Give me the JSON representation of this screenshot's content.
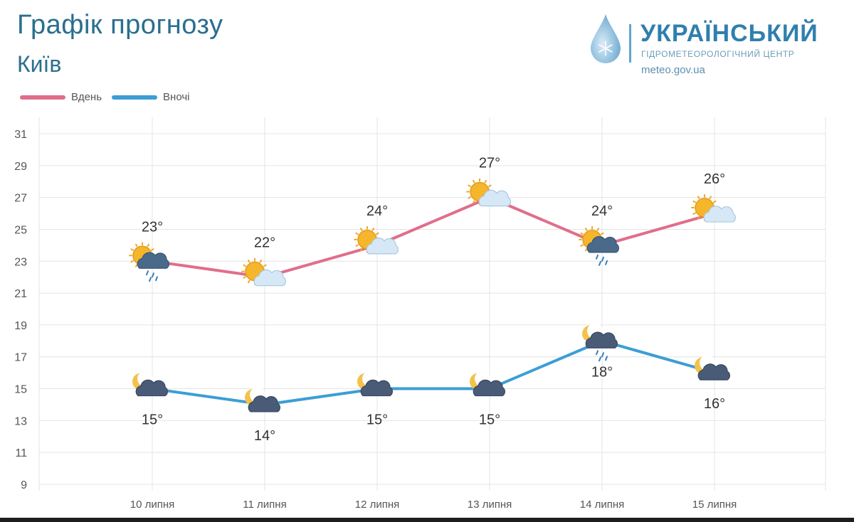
{
  "header": {
    "title": "Графік прогнозу",
    "city": "Київ"
  },
  "logo": {
    "name": "УКРАЇНСЬКИЙ",
    "subtitle": "ГІДРОМЕТЕОРОЛОГІЧНИЙ ЦЕНТР",
    "url": "meteo.gov.ua",
    "icon": "water-drop-snowflake-icon"
  },
  "legend": {
    "day_label": "Вдень",
    "night_label": "Вночі"
  },
  "colors": {
    "day": "#e06e8a",
    "night": "#3d9ed4",
    "grid": "#e6e6e6",
    "title": "#2a6f8e"
  },
  "chart_data": {
    "type": "line",
    "categories": [
      "10 липня",
      "11 липня",
      "12 липня",
      "13 липня",
      "14 липня",
      "15 липня"
    ],
    "series": [
      {
        "name": "Вдень",
        "values": [
          23,
          22,
          24,
          27,
          24,
          26
        ],
        "labels": [
          "23°",
          "22°",
          "24°",
          "27°",
          "24°",
          "26°"
        ],
        "icons": [
          "sun-cloud-rain-icon",
          "sun-cloud-icon",
          "sun-cloud-icon",
          "sun-cloud-icon",
          "sun-cloud-rain-icon",
          "sun-cloud-icon"
        ]
      },
      {
        "name": "Вночі",
        "values": [
          15,
          14,
          15,
          15,
          18,
          16
        ],
        "labels": [
          "15°",
          "14°",
          "15°",
          "15°",
          "18°",
          "16°"
        ],
        "icons": [
          "moon-cloud-icon",
          "moon-cloud-icon",
          "moon-cloud-icon",
          "moon-cloud-icon",
          "moon-cloud-rain-icon",
          "moon-cloud-icon"
        ]
      }
    ],
    "yticks": [
      9,
      11,
      13,
      15,
      17,
      19,
      21,
      23,
      25,
      27,
      29,
      31
    ],
    "ylim": [
      9,
      31
    ],
    "grid": true,
    "legend_position": "top-left"
  }
}
